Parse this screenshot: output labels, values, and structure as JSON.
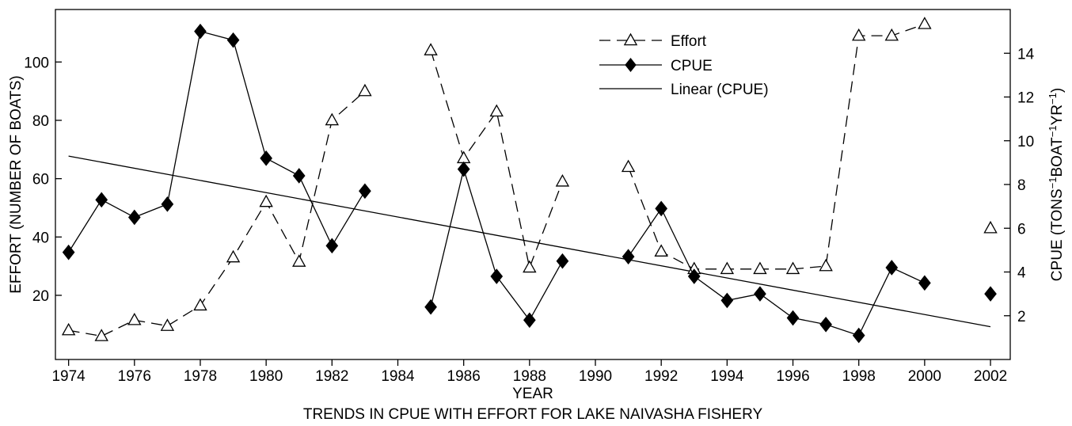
{
  "chart_data": {
    "type": "line",
    "title": "TRENDS IN CPUE WITH EFFORT FOR LAKE NAIVASHA FISHERY",
    "xlabel": "YEAR",
    "ylabel_left": "EFFORT (NUMBER OF BOATS)",
    "ylabel_right_parts": [
      {
        "text": "CPUE (TONS",
        "sup": false
      },
      {
        "text": "−1",
        "sup": true
      },
      {
        "text": "BOAT",
        "sup": false
      },
      {
        "text": "−1",
        "sup": true
      },
      {
        "text": "YR",
        "sup": false
      },
      {
        "text": "−1",
        "sup": true
      },
      {
        "text": ")",
        "sup": false
      }
    ],
    "xlim": [
      1973.6,
      2002.6
    ],
    "ylim_left": [
      -2,
      118
    ],
    "ylim_right": [
      0,
      16
    ],
    "x_ticks": [
      1974,
      1976,
      1978,
      1980,
      1982,
      1984,
      1986,
      1988,
      1990,
      1992,
      1994,
      1996,
      1998,
      2000,
      2002
    ],
    "y_left_ticks": [
      20,
      40,
      60,
      80,
      100
    ],
    "y_right_ticks": [
      2,
      4,
      6,
      8,
      10,
      12,
      14
    ],
    "legend_position": "top-center",
    "series": [
      {
        "name": "Effort",
        "axis": "left",
        "style": "dashed",
        "marker": "open-triangle",
        "segments": [
          [
            [
              1974,
              8
            ],
            [
              1975,
              6
            ],
            [
              1976,
              11.5
            ],
            [
              1977,
              9.5
            ],
            [
              1978,
              16.5
            ],
            [
              1979,
              33
            ],
            [
              1980,
              52
            ],
            [
              1981,
              31.5
            ],
            [
              1982,
              80
            ],
            [
              1983,
              90
            ]
          ],
          [
            [
              1985,
              104
            ],
            [
              1986,
              67
            ],
            [
              1987,
              83
            ],
            [
              1988,
              29.5
            ],
            [
              1989,
              59
            ]
          ],
          [
            [
              1991,
              64
            ],
            [
              1992,
              35
            ],
            [
              1993,
              29
            ],
            [
              1994,
              29
            ],
            [
              1995,
              29
            ],
            [
              1996,
              29
            ],
            [
              1997,
              30
            ],
            [
              1998,
              109
            ],
            [
              1999,
              109
            ],
            [
              2000,
              113
            ]
          ],
          [
            [
              2002,
              43
            ]
          ]
        ]
      },
      {
        "name": "CPUE",
        "axis": "right",
        "style": "solid",
        "marker": "filled-diamond",
        "segments": [
          [
            [
              1974,
              4.9
            ],
            [
              1975,
              7.3
            ],
            [
              1976,
              6.5
            ],
            [
              1977,
              7.1
            ],
            [
              1978,
              15
            ],
            [
              1979,
              14.6
            ],
            [
              1980,
              9.2
            ],
            [
              1981,
              8.4
            ],
            [
              1982,
              5.2
            ],
            [
              1983,
              7.7
            ]
          ],
          [
            [
              1985,
              2.4
            ],
            [
              1986,
              8.7
            ],
            [
              1987,
              3.8
            ],
            [
              1988,
              1.8
            ],
            [
              1989,
              4.5
            ]
          ],
          [
            [
              1991,
              4.7
            ],
            [
              1992,
              6.9
            ],
            [
              1993,
              3.8
            ],
            [
              1994,
              2.7
            ],
            [
              1995,
              3
            ],
            [
              1996,
              1.9
            ],
            [
              1997,
              1.6
            ],
            [
              1998,
              1.1
            ],
            [
              1999,
              4.2
            ],
            [
              2000,
              3.5
            ]
          ],
          [
            [
              2002,
              3
            ]
          ]
        ]
      },
      {
        "name": "Linear (CPUE)",
        "axis": "right",
        "style": "solid",
        "marker": "none",
        "segments": [
          [
            [
              1974,
              9.3
            ],
            [
              2002,
              1.5
            ]
          ]
        ]
      }
    ]
  }
}
